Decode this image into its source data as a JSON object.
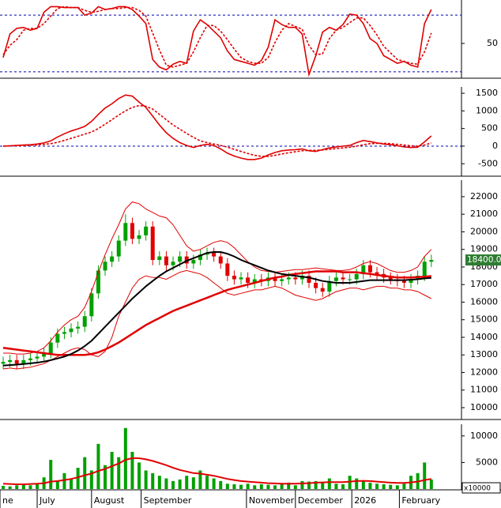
{
  "chart_data": [
    {
      "type": "line",
      "xlim": [
        -0.47,
        67.44
      ],
      "ylim": [
        14,
        96
      ],
      "yticks": [
        50
      ],
      "reference_lines": [
        80,
        20
      ],
      "series": [
        {
          "color": "#e00000",
          "values": [
            35,
            60,
            66,
            67,
            64,
            66,
            83,
            89,
            89,
            88,
            88,
            88,
            80,
            82,
            89,
            86,
            87,
            89,
            89,
            86,
            79,
            71,
            33,
            25,
            22,
            28,
            31,
            29,
            63,
            75,
            70,
            63,
            56,
            42,
            33,
            31,
            29,
            27,
            32,
            46,
            75,
            70,
            67,
            67,
            60,
            17,
            37,
            62,
            67,
            64,
            70,
            81,
            80,
            71,
            55,
            50,
            37,
            33,
            29,
            31,
            27,
            25,
            71,
            86
          ]
        },
        {
          "color": "#e00000",
          "dashed": true,
          "values": [
            38,
            48,
            54,
            64,
            66,
            66,
            71,
            79,
            87,
            89,
            88,
            88,
            85,
            83,
            84,
            86,
            87,
            87,
            88,
            88,
            85,
            79,
            61,
            43,
            27,
            25,
            27,
            29,
            41,
            56,
            69,
            69,
            63,
            54,
            44,
            35,
            31,
            29,
            29,
            35,
            51,
            64,
            71,
            68,
            65,
            48,
            38,
            39,
            55,
            64,
            67,
            72,
            77,
            77,
            69,
            59,
            47,
            40,
            33,
            31,
            29,
            28,
            41,
            61
          ]
        }
      ]
    },
    {
      "type": "line",
      "xlim": [
        -0.47,
        67.44
      ],
      "ylim": [
        -830,
        1680
      ],
      "yticks": [
        1500,
        1000,
        500,
        0,
        -500
      ],
      "reference_lines": [
        0
      ],
      "series": [
        {
          "color": "#e00000",
          "values": [
            0,
            10,
            20,
            30,
            40,
            60,
            90,
            150,
            260,
            350,
            430,
            490,
            560,
            700,
            900,
            1080,
            1200,
            1350,
            1450,
            1420,
            1250,
            1100,
            850,
            600,
            380,
            220,
            100,
            20,
            -40,
            20,
            50,
            20,
            -80,
            -200,
            -280,
            -340,
            -380,
            -380,
            -340,
            -250,
            -180,
            -130,
            -110,
            -100,
            -80,
            -130,
            -150,
            -100,
            -50,
            -20,
            0,
            20,
            100,
            160,
            130,
            90,
            60,
            40,
            10,
            -20,
            -40,
            -30,
            120,
            290
          ]
        },
        {
          "color": "#e00000",
          "dashed": true,
          "values": [
            0,
            5,
            10,
            15,
            25,
            35,
            50,
            70,
            110,
            160,
            220,
            280,
            340,
            400,
            500,
            620,
            750,
            880,
            1000,
            1100,
            1150,
            1130,
            1050,
            900,
            750,
            600,
            480,
            360,
            250,
            150,
            100,
            60,
            20,
            -30,
            -90,
            -150,
            -210,
            -260,
            -290,
            -290,
            -260,
            -220,
            -190,
            -160,
            -130,
            -120,
            -120,
            -110,
            -90,
            -70,
            -50,
            -30,
            0,
            40,
            70,
            80,
            80,
            70,
            50,
            30,
            10,
            0,
            30,
            90
          ]
        }
      ]
    },
    {
      "type": "candlestick",
      "xlim": [
        -0.47,
        67.44
      ],
      "ylim": [
        9370,
        22940
      ],
      "yticks": [
        10000,
        11000,
        12000,
        13000,
        14000,
        15000,
        16000,
        17000,
        18000,
        19000,
        20000,
        21000,
        22000
      ],
      "up_color": "#00a000",
      "down_color": "#e00000",
      "open": [
        12500,
        12600,
        12700,
        12500,
        12700,
        12800,
        12900,
        13100,
        13700,
        14200,
        14300,
        14500,
        14600,
        15200,
        16500,
        17800,
        18300,
        18600,
        19500,
        20500,
        19600,
        19800,
        20300,
        18400,
        18600,
        18100,
        18300,
        18600,
        18200,
        18400,
        18700,
        18800,
        18600,
        18200,
        17500,
        17300,
        17400,
        17100,
        17300,
        17200,
        17400,
        17200,
        17300,
        17400,
        17300,
        17500,
        17100,
        16800,
        16600,
        17200,
        17400,
        17300,
        17300,
        17600,
        18100,
        17700,
        17600,
        17400,
        17300,
        17200,
        17100,
        17300,
        17500,
        18300
      ],
      "high": [
        12900,
        13000,
        13000,
        13000,
        13100,
        13200,
        13400,
        14000,
        14500,
        14600,
        14800,
        14900,
        15500,
        16800,
        18100,
        18600,
        18900,
        19800,
        21000,
        20800,
        20100,
        20600,
        20600,
        18900,
        18900,
        18600,
        18900,
        18900,
        18700,
        19000,
        19100,
        19100,
        18900,
        18500,
        17800,
        17700,
        17700,
        17600,
        17600,
        17700,
        17700,
        17600,
        17700,
        17700,
        17800,
        17800,
        17400,
        17100,
        17500,
        17700,
        17700,
        17600,
        17900,
        18400,
        18400,
        18000,
        17900,
        17700,
        17600,
        17500,
        17600,
        17800,
        18600,
        18700
      ],
      "low": [
        12200,
        12300,
        12200,
        12200,
        12400,
        12500,
        12600,
        12800,
        13400,
        13900,
        14000,
        14200,
        14300,
        14900,
        16200,
        17500,
        18000,
        18300,
        19200,
        19300,
        19300,
        19500,
        18100,
        18100,
        17800,
        17800,
        18000,
        17900,
        17900,
        18100,
        18400,
        18300,
        17900,
        17200,
        17000,
        17000,
        16800,
        16800,
        16900,
        16900,
        16900,
        16900,
        17000,
        17000,
        17000,
        16800,
        16500,
        16300,
        16300,
        16900,
        17000,
        17000,
        17000,
        17300,
        17400,
        17300,
        17100,
        17000,
        16900,
        16800,
        16800,
        17000,
        17200,
        18000
      ],
      "close": [
        12600,
        12700,
        12500,
        12700,
        12800,
        12900,
        13100,
        13700,
        14200,
        14300,
        14500,
        14600,
        15200,
        16500,
        17800,
        18300,
        18600,
        19500,
        20500,
        19600,
        19800,
        20300,
        18400,
        18600,
        18100,
        18300,
        18600,
        18200,
        18400,
        18700,
        18800,
        18600,
        18200,
        17500,
        17300,
        17400,
        17100,
        17300,
        17200,
        17400,
        17200,
        17300,
        17400,
        17300,
        17500,
        17100,
        16800,
        16600,
        17200,
        17400,
        17300,
        17300,
        17600,
        18100,
        17700,
        17600,
        17400,
        17300,
        17200,
        17100,
        17300,
        17500,
        18300,
        18400
      ],
      "series": [
        {
          "color": "#e00000",
          "width": 1,
          "values": [
            13100,
            13100,
            13050,
            13050,
            13100,
            13200,
            13400,
            13800,
            14300,
            14700,
            15000,
            15200,
            15700,
            16600,
            17700,
            18700,
            19600,
            20400,
            21300,
            21700,
            21600,
            21300,
            21100,
            20900,
            20800,
            20400,
            19800,
            19200,
            18900,
            19000,
            19200,
            19400,
            19500,
            19400,
            19100,
            18700,
            18300,
            18000,
            17800,
            17750,
            17700,
            17750,
            17800,
            17850,
            17850,
            17900,
            17950,
            17900,
            17850,
            17800,
            17800,
            17850,
            18000,
            18200,
            18300,
            18200,
            18000,
            17800,
            17700,
            17700,
            17800,
            18000,
            18600,
            19000
          ]
        },
        {
          "color": "#e00000",
          "width": 1,
          "values": [
            12200,
            12250,
            12200,
            12250,
            12300,
            12400,
            12500,
            12700,
            12900,
            13100,
            13300,
            13400,
            13300,
            13000,
            12900,
            13200,
            14000,
            15200,
            16000,
            16800,
            17300,
            17500,
            17400,
            17400,
            17300,
            17500,
            17700,
            17800,
            17700,
            17600,
            17400,
            17100,
            16800,
            16500,
            16400,
            16500,
            16600,
            16700,
            16700,
            16800,
            16900,
            16800,
            16600,
            16400,
            16300,
            16200,
            16100,
            16200,
            16400,
            16600,
            16700,
            16800,
            16800,
            16700,
            16800,
            16900,
            16900,
            16800,
            16800,
            16700,
            16700,
            16600,
            16400,
            16200
          ]
        },
        {
          "color": "#e00000",
          "width": 2.5,
          "values": [
            13400,
            13350,
            13300,
            13250,
            13200,
            13150,
            13100,
            13050,
            13000,
            13000,
            13000,
            13000,
            13000,
            13050,
            13150,
            13300,
            13500,
            13700,
            13950,
            14200,
            14450,
            14700,
            14900,
            15100,
            15300,
            15500,
            15650,
            15800,
            15950,
            16100,
            16250,
            16400,
            16550,
            16700,
            16800,
            16900,
            17000,
            17100,
            17200,
            17300,
            17400,
            17450,
            17550,
            17600,
            17650,
            17700,
            17750,
            17750,
            17750,
            17750,
            17700,
            17700,
            17700,
            17650,
            17600,
            17550,
            17500,
            17450,
            17400,
            17400,
            17400,
            17420,
            17450,
            17480
          ]
        },
        {
          "color": "#000000",
          "width": 2,
          "values": [
            12400,
            12420,
            12450,
            12480,
            12520,
            12560,
            12620,
            12700,
            12800,
            12900,
            13050,
            13250,
            13500,
            13800,
            14200,
            14600,
            15000,
            15400,
            15800,
            16200,
            16550,
            16900,
            17200,
            17500,
            17750,
            17950,
            18150,
            18350,
            18500,
            18650,
            18800,
            18850,
            18850,
            18750,
            18600,
            18400,
            18250,
            18100,
            17950,
            17800,
            17700,
            17600,
            17550,
            17500,
            17450,
            17400,
            17300,
            17200,
            17150,
            17100,
            17100,
            17100,
            17150,
            17200,
            17250,
            17250,
            17250,
            17250,
            17250,
            17250,
            17280,
            17300,
            17350,
            17380
          ]
        }
      ],
      "last_price": {
        "value": 18400,
        "label": "18400.00"
      }
    },
    {
      "type": "bar",
      "xlim": [
        -0.47,
        67.44
      ],
      "ylim": [
        0,
        12200
      ],
      "yticks": [
        10000,
        5000
      ],
      "unit_label": "x10000",
      "color": "#00a000",
      "values": [
        600,
        500,
        700,
        800,
        700,
        900,
        2200,
        5500,
        1500,
        3000,
        2000,
        4000,
        6000,
        3500,
        8500,
        4500,
        7000,
        6000,
        11500,
        7000,
        5000,
        3500,
        3000,
        2500,
        2000,
        1500,
        1800,
        2500,
        2200,
        3500,
        2500,
        2000,
        1500,
        1000,
        900,
        800,
        1000,
        700,
        900,
        800,
        700,
        900,
        1200,
        700,
        1500,
        1400,
        1500,
        1200,
        2000,
        1000,
        900,
        2500,
        2000,
        1500,
        1200,
        1000,
        900,
        800,
        700,
        1000,
        2500,
        3000,
        5000,
        1800
      ],
      "series": [
        {
          "color": "#e00000",
          "width": 2,
          "values": [
            1000,
            950,
            900,
            900,
            950,
            1000,
            1100,
            1400,
            1500,
            1700,
            1900,
            2200,
            2600,
            2900,
            3400,
            3800,
            4300,
            4800,
            5500,
            5800,
            5800,
            5600,
            5300,
            4900,
            4500,
            4000,
            3600,
            3300,
            3000,
            2900,
            2700,
            2500,
            2200,
            1900,
            1700,
            1500,
            1400,
            1300,
            1200,
            1100,
            1050,
            1000,
            1000,
            1000,
            1050,
            1100,
            1200,
            1250,
            1300,
            1300,
            1300,
            1400,
            1500,
            1550,
            1500,
            1400,
            1300,
            1200,
            1150,
            1150,
            1250,
            1400,
            1700,
            1900
          ]
        }
      ],
      "xticks": [
        {
          "value": -0.47,
          "label": "ne"
        },
        {
          "value": 5.0,
          "label": "July"
        },
        {
          "value": 13.0,
          "label": "August"
        },
        {
          "value": 20.3,
          "label": "September"
        },
        {
          "value": 35.8,
          "label": "November"
        },
        {
          "value": 43.0,
          "label": "December"
        },
        {
          "value": 51.3,
          "label": "2026"
        },
        {
          "value": 58.3,
          "label": "February"
        }
      ]
    }
  ]
}
